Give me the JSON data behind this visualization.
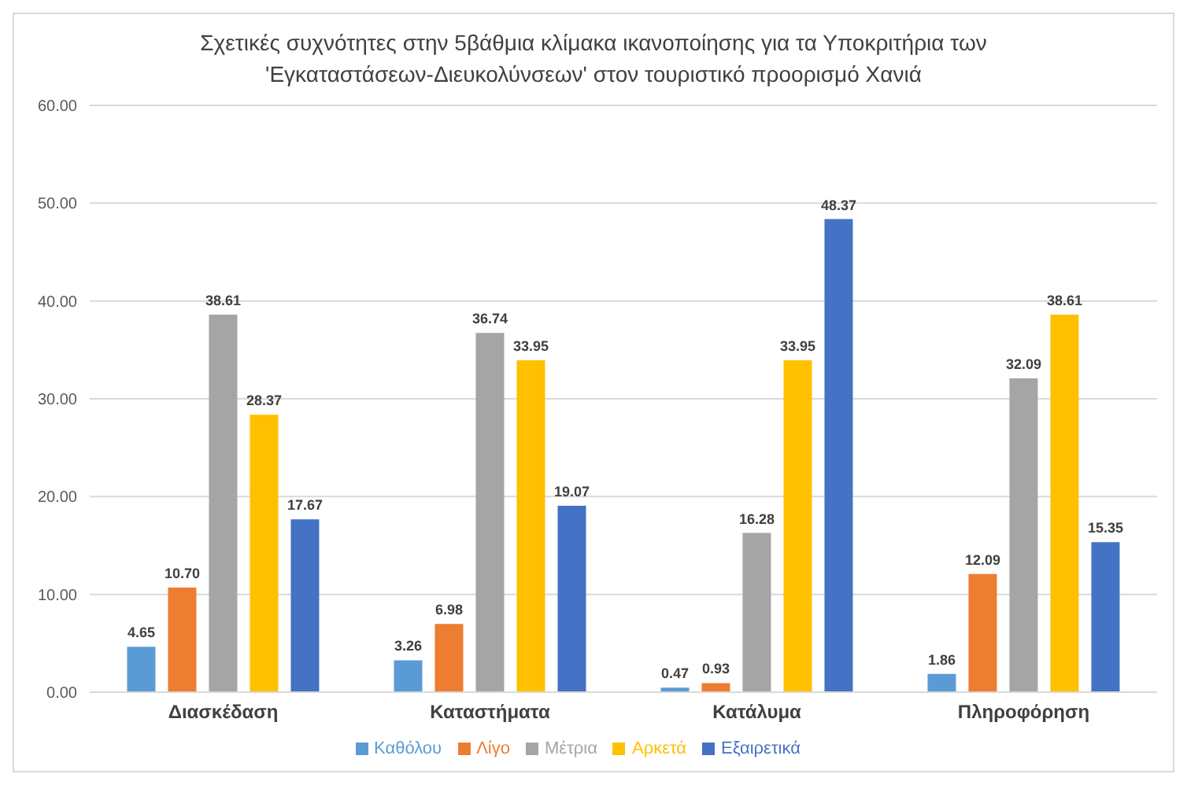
{
  "chart_data": {
    "type": "bar",
    "title": "Σχετικές συχνότητες στην 5βάθμια κλίμακα ικανοποίησης για τα Υποκριτήρια των 'Εγκαταστάσεων-Διευκολύνσεων' στον τουριστικό προορισμό Χανιά",
    "categories": [
      "Διασκέδαση",
      "Καταστήματα",
      "Κατάλυμα",
      "Πληροφόρηση"
    ],
    "series": [
      {
        "name": "Καθόλου",
        "color": "#5b9bd5",
        "values": [
          4.65,
          3.26,
          0.47,
          1.86
        ],
        "value_labels": [
          "4.65",
          "3.26",
          "0.47",
          "1.86"
        ]
      },
      {
        "name": "Λίγο",
        "color": "#ed7d31",
        "values": [
          10.7,
          6.98,
          0.93,
          12.09
        ],
        "value_labels": [
          "10.70",
          "6.98",
          "0.93",
          "12.09"
        ]
      },
      {
        "name": "Μέτρια",
        "color": "#a5a5a5",
        "values": [
          38.61,
          36.74,
          16.28,
          32.09
        ],
        "value_labels": [
          "38.61",
          "36.74",
          "16.28",
          "32.09"
        ]
      },
      {
        "name": "Αρκετά",
        "color": "#ffc000",
        "values": [
          28.37,
          33.95,
          33.95,
          38.61
        ],
        "value_labels": [
          "28.37",
          "33.95",
          "33.95",
          "38.61"
        ]
      },
      {
        "name": "Εξαιρετικά",
        "color": "#4472c4",
        "values": [
          17.67,
          19.07,
          48.37,
          15.35
        ],
        "value_labels": [
          "17.67",
          "19.07",
          "48.37",
          "15.35"
        ]
      }
    ],
    "ylim": [
      0,
      60
    ],
    "yticks": [
      {
        "value": 0,
        "label": "0.00"
      },
      {
        "value": 10,
        "label": "10.00"
      },
      {
        "value": 20,
        "label": "20.00"
      },
      {
        "value": 30,
        "label": "30.00"
      },
      {
        "value": 40,
        "label": "40.00"
      },
      {
        "value": 50,
        "label": "50.00"
      },
      {
        "value": 60,
        "label": "60.00"
      }
    ],
    "grid": "y",
    "legend": "bottom"
  }
}
